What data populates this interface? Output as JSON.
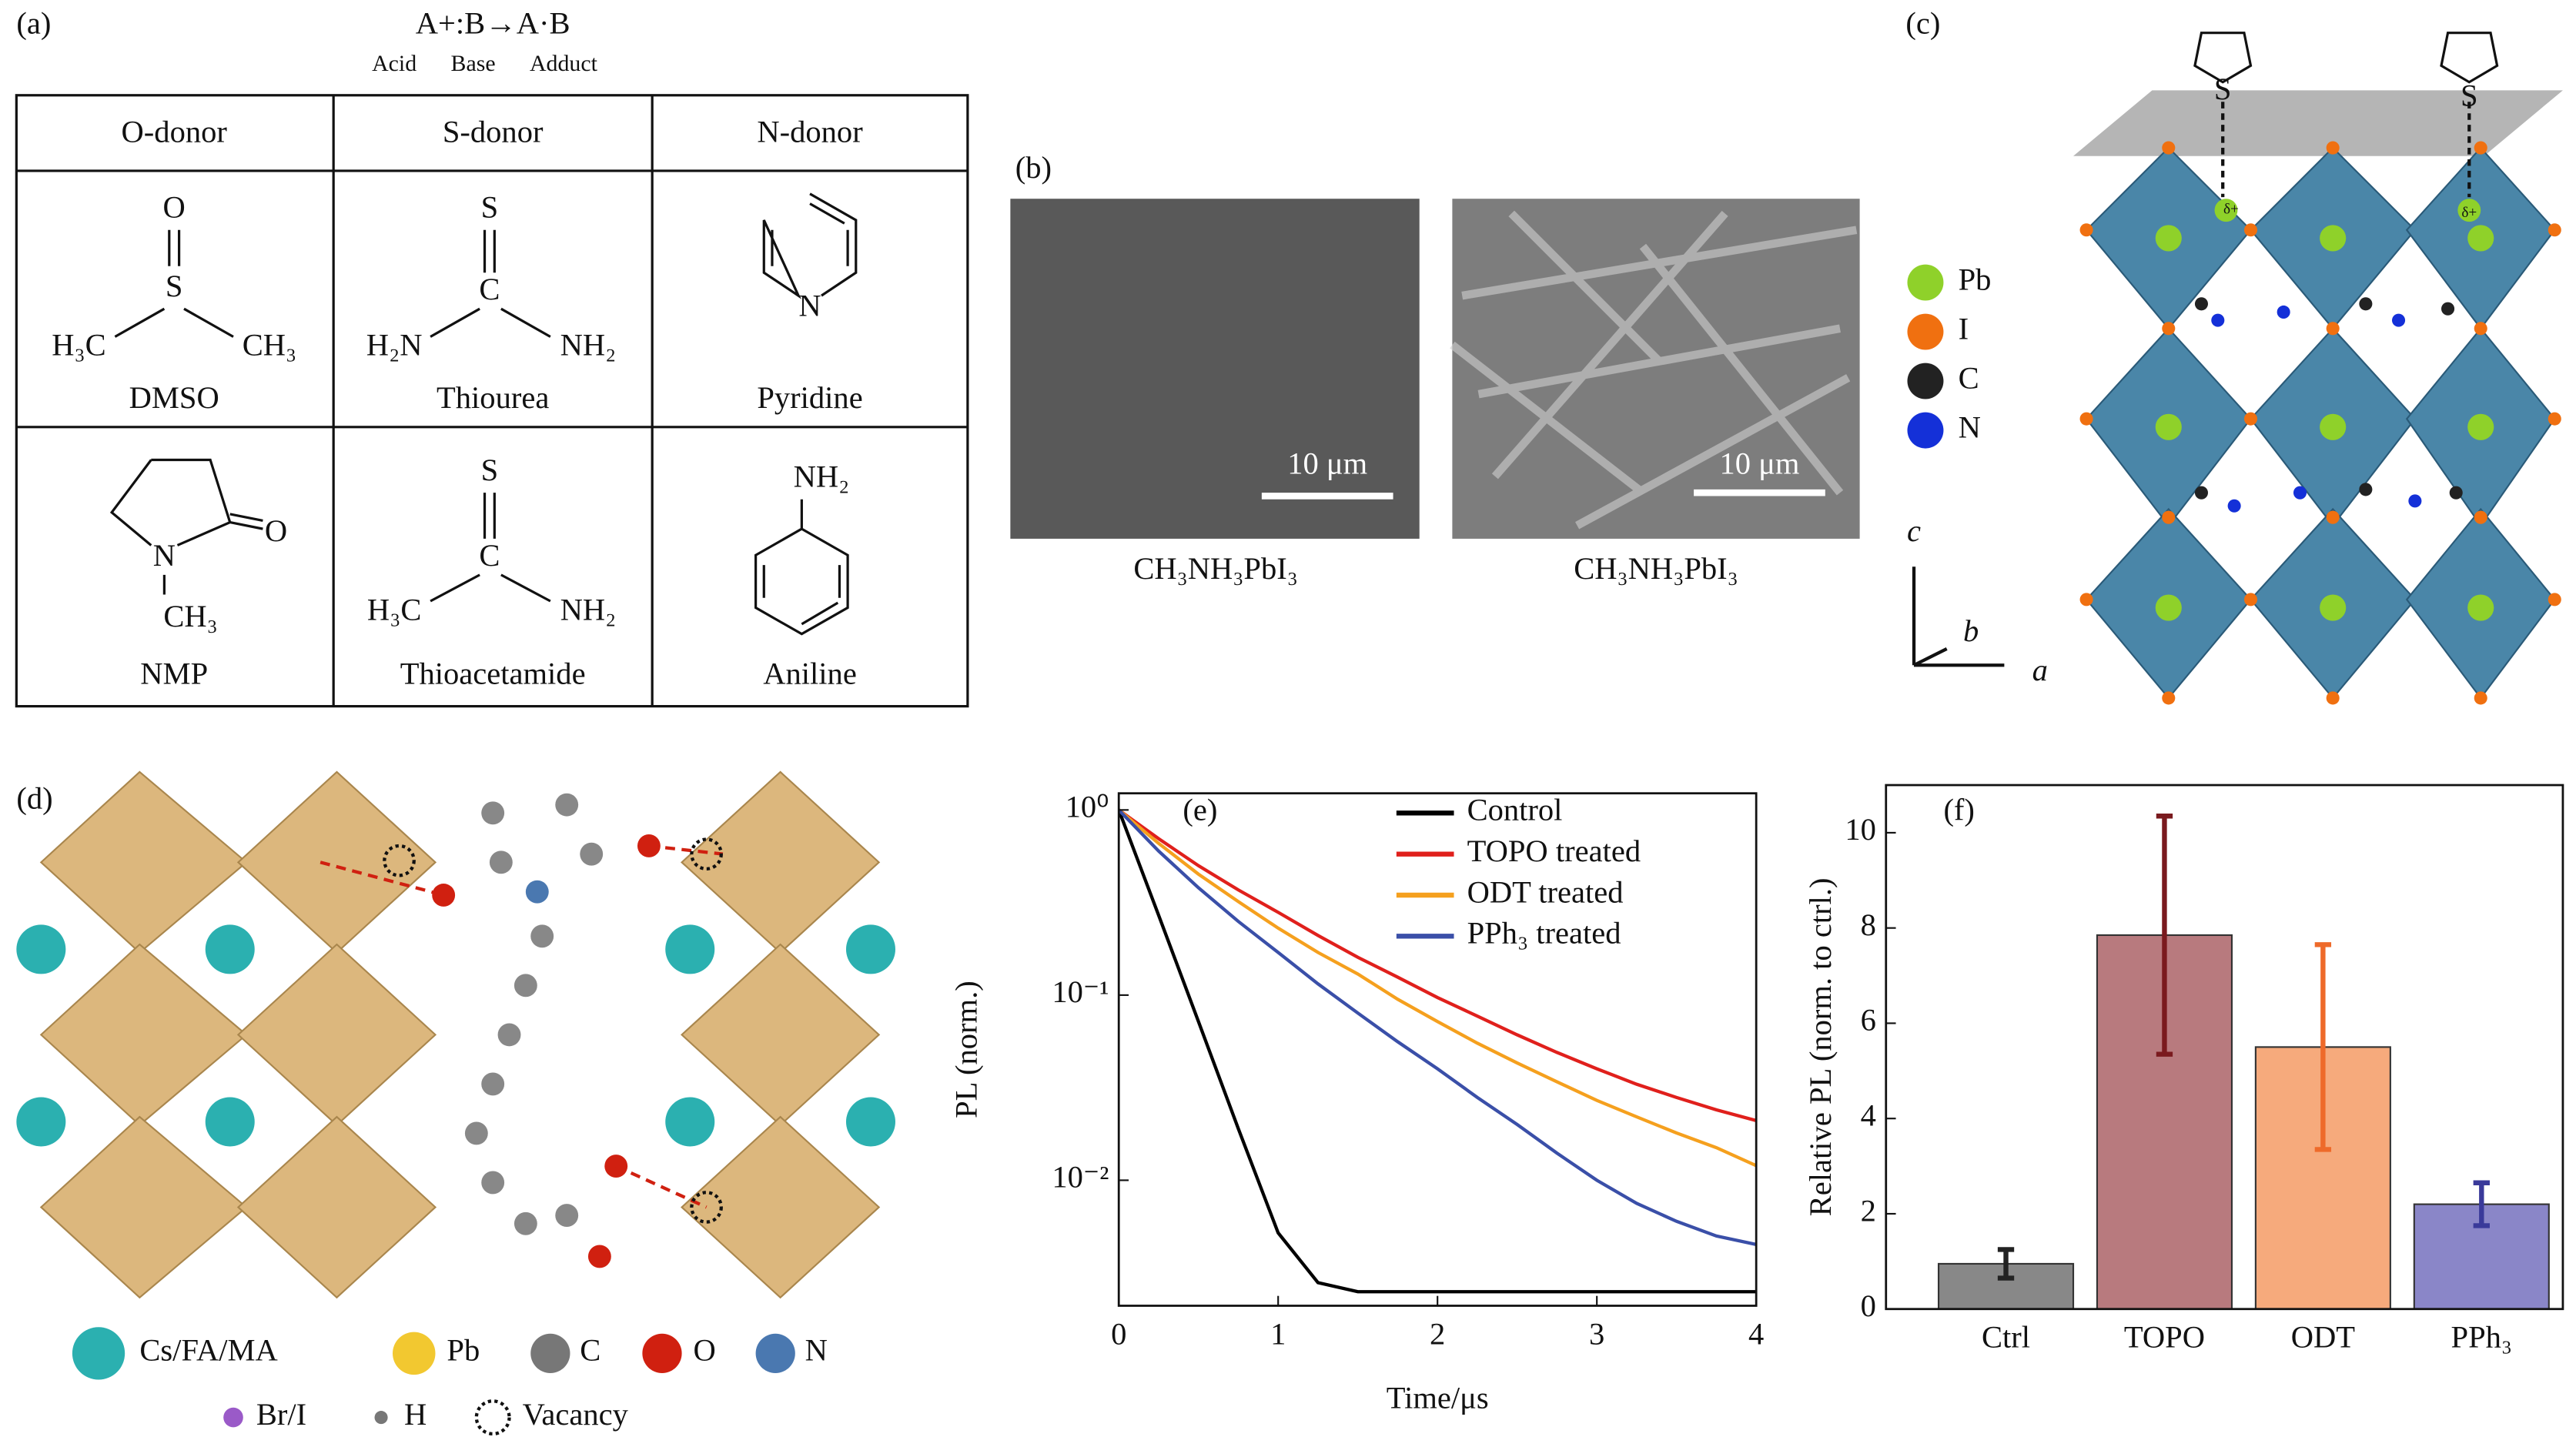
{
  "panels": {
    "a": {
      "label": "(a)",
      "equation": "A+:B→A·B",
      "eq_labels": [
        "Acid",
        "Base",
        "Adduct"
      ],
      "table": {
        "header": [
          "O-donor",
          "S-donor",
          "N-donor"
        ],
        "rows": [
          [
            "DMSO",
            "Thiourea",
            "Pyridine"
          ],
          [
            "NMP",
            "Thioacetamide",
            "Aniline"
          ]
        ]
      },
      "atoms": {
        "dmso": [
          "O",
          "S",
          "H₃C",
          "CH₃"
        ],
        "thiourea": [
          "S",
          "C",
          "H₂N",
          "NH₂"
        ],
        "pyridine": [
          "N"
        ],
        "nmp": [
          "O",
          "N",
          "CH₃"
        ],
        "thioacetamide": [
          "S",
          "C",
          "H₃C",
          "NH₂"
        ],
        "aniline": [
          "NH₂"
        ]
      }
    },
    "b": {
      "label": "(b)",
      "scale_bars": [
        "10 μm",
        "10 μm"
      ],
      "captions": [
        "CH₃NH₃PbI₃",
        "CH₃NH₃PbI₃"
      ]
    },
    "c": {
      "label": "(c)",
      "legend": [
        "Pb",
        "I",
        "C",
        "N"
      ],
      "axes": [
        "c",
        "b",
        "a"
      ],
      "charges": [
        "δ+",
        "δ+"
      ],
      "sulfur": [
        "S",
        "S"
      ]
    },
    "d": {
      "label": "(d)",
      "legend": [
        "Cs/FA/MA",
        "Pb",
        "C",
        "O",
        "N",
        "Br/I",
        "H",
        "Vacancy"
      ]
    }
  },
  "chart_data": [
    {
      "type": "line",
      "annotation": "(e)",
      "xlabel": "Time/μs",
      "ylabel": "PL (norm.)",
      "log_y": true,
      "x": [
        0,
        0.25,
        0.5,
        0.75,
        1,
        1.25,
        1.5,
        1.75,
        2,
        2.25,
        2.5,
        2.75,
        3,
        3.25,
        3.5,
        3.75,
        4
      ],
      "series": [
        {
          "name": "Control",
          "color": "#000000",
          "values": [
            1,
            0.27,
            0.072,
            0.019,
            0.0052,
            0.0028,
            0.0025,
            0.0025,
            0.0025,
            0.0025,
            0.0025,
            0.0025,
            0.0025,
            0.0025,
            0.0025,
            0.0025,
            0.0025
          ]
        },
        {
          "name": "TOPO treated",
          "color": "#e0201c",
          "values": [
            1,
            0.7,
            0.5,
            0.37,
            0.28,
            0.21,
            0.16,
            0.125,
            0.097,
            0.077,
            0.061,
            0.049,
            0.04,
            0.033,
            0.028,
            0.024,
            0.021
          ]
        },
        {
          "name": "ODT treated",
          "color": "#f5a01e",
          "values": [
            1,
            0.66,
            0.45,
            0.32,
            0.23,
            0.17,
            0.13,
            0.095,
            0.072,
            0.055,
            0.043,
            0.034,
            0.027,
            0.022,
            0.018,
            0.015,
            0.012
          ]
        },
        {
          "name": "PPh₃ treated",
          "color": "#3a4fa8",
          "values": [
            1,
            0.6,
            0.38,
            0.25,
            0.17,
            0.115,
            0.08,
            0.056,
            0.04,
            0.028,
            0.02,
            0.014,
            0.01,
            0.0075,
            0.006,
            0.005,
            0.0045
          ]
        }
      ],
      "xlim": [
        0,
        4
      ],
      "ylim": [
        0.0021,
        1.23
      ],
      "xticks": [
        0,
        1,
        2,
        3,
        4
      ],
      "yticks": [
        {
          "value": 1,
          "label": "10⁰"
        },
        {
          "value": 0.1,
          "label": "10⁻¹"
        },
        {
          "value": 0.01,
          "label": "10⁻²"
        }
      ],
      "legend": "upper right"
    },
    {
      "type": "bar",
      "annotation": "(f)",
      "ylabel": "Relative PL (norm. to ctrl.)",
      "categories": [
        "Ctrl",
        "TOPO",
        "ODT",
        "PPh₃"
      ],
      "values": [
        0.95,
        7.85,
        5.5,
        2.2
      ],
      "errors": [
        0.3,
        2.5,
        2.15,
        0.45
      ],
      "colors": [
        "#888888",
        "#b87a7e",
        "#f6aa7c",
        "#8a86c8"
      ],
      "error_colors": [
        "#222222",
        "#7a1a1e",
        "#ee6a2a",
        "#3a3a9a"
      ],
      "ylim": [
        0,
        11
      ],
      "yticks": [
        0,
        2,
        4,
        6,
        8,
        10
      ]
    }
  ]
}
